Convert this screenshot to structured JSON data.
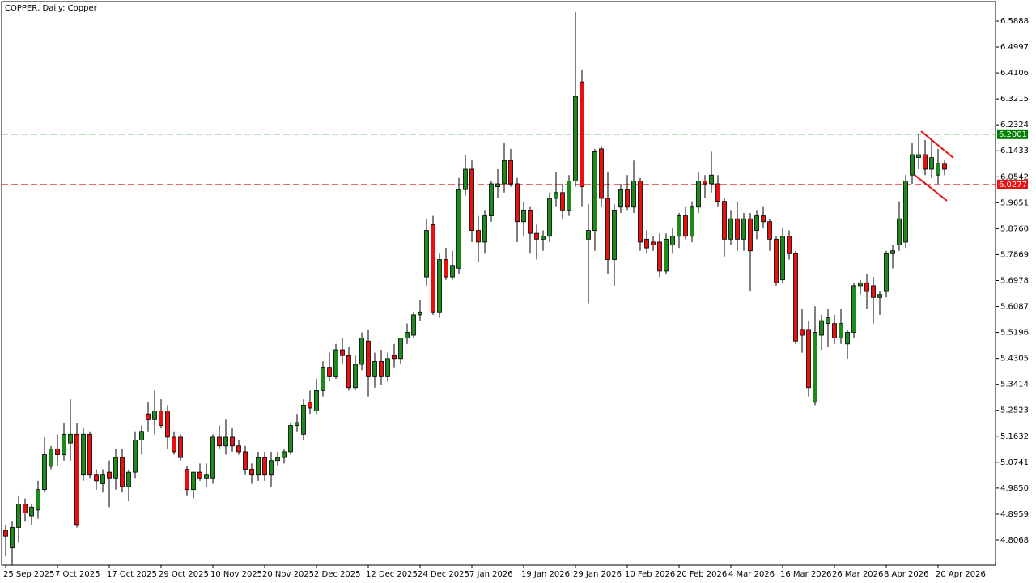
{
  "chart_data": {
    "type": "candlestick",
    "title": "COPPER, Daily:  Copper",
    "categories": [
      "25 Sep 2025",
      null,
      null,
      null,
      null,
      null,
      null,
      null,
      "7 Oct 2025",
      null,
      null,
      null,
      null,
      null,
      null,
      null,
      "17 Oct 2025",
      null,
      null,
      null,
      null,
      null,
      null,
      null,
      "29 Oct 2025",
      null,
      null,
      null,
      null,
      null,
      null,
      null,
      "10 Nov 2025",
      null,
      null,
      null,
      null,
      null,
      null,
      null,
      "20 Nov 2025",
      null,
      null,
      null,
      null,
      null,
      null,
      null,
      "2 Dec 2025",
      null,
      null,
      null,
      null,
      null,
      null,
      null,
      "12 Dec 2025",
      null,
      null,
      null,
      null,
      null,
      null,
      null,
      "24 Dec 2025",
      null,
      null,
      null,
      null,
      null,
      null,
      null,
      "7 Jan 2026",
      null,
      null,
      null,
      null,
      null,
      null,
      null,
      "19 Jan 2026",
      null,
      null,
      null,
      null,
      null,
      null,
      null,
      "29 Jan 2026",
      null,
      null,
      null,
      null,
      null,
      null,
      null,
      "10 Feb 2026",
      null,
      null,
      null,
      null,
      null,
      null,
      null,
      "20 Feb 2026",
      null,
      null,
      null,
      null,
      null,
      null,
      null,
      "4 Mar 2026",
      null,
      null,
      null,
      null,
      null,
      null,
      null,
      "16 Mar 2026",
      null,
      null,
      null,
      null,
      null,
      null,
      null,
      "26 Mar 2026",
      null,
      null,
      null,
      null,
      null,
      null,
      null,
      "8 Apr 2026",
      null,
      null,
      null,
      null,
      null,
      null,
      null,
      "20 Apr 2026",
      null
    ],
    "open": [
      4.84,
      4.78,
      4.85,
      4.93,
      4.89,
      4.91,
      4.98,
      5.06,
      5.12,
      5.1,
      5.14,
      5.17,
      5.03,
      5.17,
      5.03,
      5.0,
      5.04,
      5.02,
      5.09,
      4.99,
      5.04,
      5.15,
      5.24,
      5.22,
      5.25,
      5.25,
      5.16,
      5.16,
      5.05,
      4.98,
      5.04,
      5.02,
      5.02,
      5.16,
      5.13,
      5.16,
      5.13,
      5.11,
      5.05,
      5.03,
      5.09,
      5.03,
      5.08,
      5.09,
      5.11,
      5.2,
      5.17,
      5.28,
      5.25,
      5.32,
      5.4,
      5.37,
      5.46,
      5.44,
      5.33,
      5.41,
      5.49,
      5.37,
      5.42,
      5.37,
      5.44,
      5.43,
      5.5,
      5.51,
      5.58,
      5.71,
      5.89,
      5.59,
      5.77,
      5.71,
      5.74,
      6.01,
      6.08,
      5.87,
      5.83,
      5.92,
      6.02,
      6.03,
      6.11,
      6.03,
      5.9,
      5.94,
      5.86,
      5.84,
      5.85,
      5.98,
      6.0,
      5.94,
      6.04,
      6.38,
      5.84,
      5.87,
      6.15,
      5.98,
      5.77,
      5.95,
      6.01,
      5.95,
      6.04,
      5.84,
      5.83,
      5.83,
      5.73,
      5.82,
      5.85,
      5.92,
      5.85,
      5.95,
      6.04,
      6.03,
      6.03,
      5.97,
      5.84,
      5.91,
      5.84,
      5.91,
      5.87,
      5.92,
      5.9,
      5.84,
      5.7,
      5.85,
      5.79,
      5.53,
      5.53,
      5.28,
      5.51,
      5.55,
      5.55,
      5.5,
      5.48,
      5.52,
      5.68,
      5.69,
      5.68,
      5.64,
      5.66,
      5.79,
      5.82,
      5.83,
      6.06,
      6.12,
      6.13,
      6.08,
      6.06,
      6.1
    ],
    "high": [
      4.86,
      4.87,
      4.96,
      4.95,
      4.93,
      5.01,
      5.16,
      5.13,
      5.17,
      5.21,
      5.29,
      5.21,
      5.19,
      5.18,
      5.05,
      5.05,
      5.08,
      5.12,
      5.12,
      5.05,
      5.18,
      5.2,
      5.28,
      5.32,
      5.29,
      5.27,
      5.18,
      5.17,
      5.06,
      5.04,
      5.07,
      5.07,
      5.17,
      5.2,
      5.22,
      5.19,
      5.15,
      5.13,
      5.07,
      5.11,
      5.11,
      5.11,
      5.11,
      5.12,
      5.21,
      5.24,
      5.29,
      5.32,
      5.36,
      5.42,
      5.45,
      5.48,
      5.5,
      5.47,
      5.44,
      5.52,
      5.53,
      5.45,
      5.46,
      5.45,
      5.48,
      5.5,
      5.55,
      5.59,
      5.63,
      5.91,
      5.92,
      5.79,
      5.81,
      5.8,
      6.05,
      6.13,
      6.11,
      5.92,
      5.94,
      6.04,
      6.08,
      6.17,
      6.15,
      6.05,
      5.97,
      5.95,
      5.89,
      5.87,
      6.0,
      6.07,
      6.03,
      6.06,
      6.62,
      6.42,
      5.96,
      6.15,
      6.16,
      6.07,
      5.96,
      6.03,
      6.06,
      6.11,
      6.05,
      5.87,
      5.85,
      5.86,
      5.86,
      5.88,
      5.93,
      5.95,
      5.97,
      6.07,
      6.06,
      6.14,
      6.06,
      5.98,
      5.94,
      5.97,
      5.93,
      5.93,
      5.94,
      5.95,
      5.91,
      5.85,
      5.88,
      5.87,
      5.8,
      5.6,
      5.56,
      5.61,
      5.58,
      5.6,
      5.58,
      5.6,
      5.53,
      5.69,
      5.7,
      5.72,
      5.71,
      5.66,
      5.8,
      5.82,
      5.97,
      6.06,
      6.17,
      6.2,
      6.18,
      6.18,
      6.15,
      6.11
    ],
    "low": [
      4.75,
      4.72,
      4.8,
      4.87,
      4.86,
      4.88,
      4.97,
      5.05,
      5.06,
      5.08,
      5.08,
      4.85,
      5.01,
      5.02,
      4.98,
      4.97,
      4.92,
      4.98,
      4.97,
      4.94,
      5.02,
      5.1,
      5.18,
      5.17,
      5.19,
      5.12,
      5.1,
      5.08,
      4.96,
      4.95,
      5.01,
      4.99,
      5.0,
      5.12,
      5.1,
      5.11,
      5.1,
      5.03,
      5.0,
      5.01,
      5.01,
      4.99,
      5.06,
      5.07,
      5.1,
      5.18,
      5.15,
      5.24,
      5.24,
      5.3,
      5.35,
      5.36,
      5.41,
      5.32,
      5.32,
      5.39,
      5.3,
      5.33,
      5.34,
      5.35,
      5.4,
      5.41,
      5.48,
      5.5,
      5.56,
      5.68,
      5.58,
      5.57,
      5.7,
      5.7,
      5.72,
      5.99,
      5.83,
      5.76,
      5.79,
      5.9,
      5.98,
      6.0,
      6.02,
      5.83,
      5.85,
      5.79,
      5.77,
      5.8,
      5.83,
      5.95,
      5.91,
      5.92,
      6.02,
      5.95,
      5.62,
      5.8,
      5.95,
      5.72,
      5.68,
      5.93,
      5.94,
      5.93,
      5.8,
      5.79,
      5.8,
      5.71,
      5.72,
      5.79,
      5.81,
      5.84,
      5.83,
      5.93,
      5.98,
      6.0,
      5.95,
      5.78,
      5.82,
      5.8,
      5.8,
      5.66,
      5.84,
      5.88,
      5.8,
      5.68,
      5.69,
      5.77,
      5.48,
      5.45,
      5.3,
      5.27,
      5.46,
      5.47,
      5.48,
      5.48,
      5.43,
      5.5,
      5.65,
      5.6,
      5.55,
      5.58,
      5.64,
      5.74,
      5.8,
      5.81,
      6.03,
      6.08,
      6.06,
      6.05,
      6.03,
      6.06
    ],
    "close": [
      4.82,
      4.85,
      4.93,
      4.9,
      4.92,
      4.98,
      5.1,
      5.12,
      5.1,
      5.17,
      5.17,
      4.86,
      5.17,
      5.03,
      5.01,
      5.03,
      5.02,
      5.09,
      4.99,
      5.04,
      5.15,
      5.18,
      5.22,
      5.25,
      5.2,
      5.16,
      5.11,
      5.09,
      4.98,
      5.04,
      5.02,
      5.03,
      5.16,
      5.13,
      5.16,
      5.13,
      5.11,
      5.05,
      5.03,
      5.09,
      5.03,
      5.08,
      5.09,
      5.11,
      5.2,
      5.21,
      5.27,
      5.26,
      5.32,
      5.4,
      5.37,
      5.46,
      5.44,
      5.33,
      5.41,
      5.5,
      5.37,
      5.42,
      5.37,
      5.43,
      5.43,
      5.5,
      5.52,
      5.58,
      5.59,
      5.87,
      5.59,
      5.77,
      5.71,
      5.75,
      6.01,
      6.08,
      5.87,
      5.83,
      5.92,
      6.03,
      6.03,
      6.11,
      6.03,
      5.9,
      5.94,
      5.86,
      5.84,
      5.85,
      5.98,
      6.0,
      5.94,
      6.04,
      6.33,
      6.02,
      5.87,
      6.14,
      5.98,
      5.77,
      5.94,
      6.01,
      5.95,
      6.04,
      5.83,
      5.81,
      5.82,
      5.73,
      5.84,
      5.85,
      5.92,
      5.85,
      5.95,
      6.04,
      6.03,
      6.06,
      5.97,
      5.84,
      5.91,
      5.84,
      5.91,
      5.8,
      5.92,
      5.9,
      5.84,
      5.69,
      5.85,
      5.79,
      5.49,
      5.51,
      5.33,
      5.52,
      5.56,
      5.57,
      5.5,
      5.55,
      5.52,
      5.68,
      5.69,
      5.66,
      5.64,
      5.65,
      5.79,
      5.8,
      5.91,
      6.04,
      6.13,
      6.13,
      6.08,
      6.12,
      6.1,
      6.08
    ],
    "up_color": "#1e8a1e",
    "down_color": "#e81010",
    "ylim": [
      4.7206,
      6.6555
    ],
    "yticks": [
      6.5888,
      6.4997,
      6.4106,
      6.3215,
      6.2324,
      6.1433,
      6.0542,
      5.9651,
      {
        "value": 5.876,
        "label": "5.8760"
      },
      5.7869,
      5.6978,
      5.6087,
      5.5196,
      5.4305,
      5.3414,
      5.2523,
      5.1632,
      5.0741,
      {
        "value": 4.985,
        "label": "4.9850"
      },
      4.8959,
      4.8068
    ],
    "hlines": [
      {
        "value": 6.2001,
        "color": "#008000"
      },
      {
        "value": 6.0277,
        "color": "#e81010"
      }
    ]
  }
}
